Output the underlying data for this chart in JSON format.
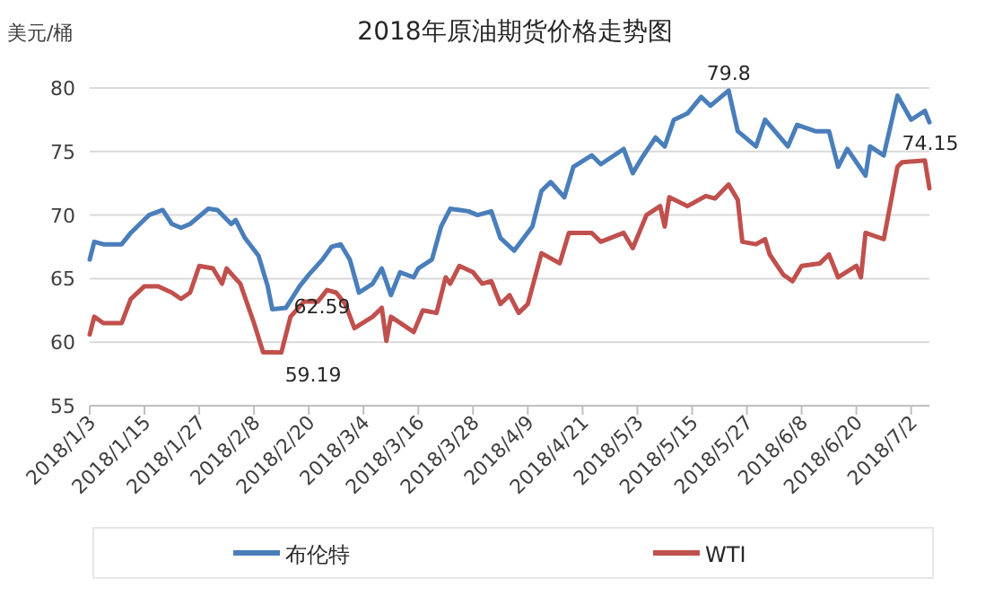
{
  "chart_data": {
    "type": "line",
    "title": "2018年原油期货价格走势图",
    "ylabel": "美元/桶",
    "xlim": [
      "2018-01-03",
      "2018-07-06"
    ],
    "xticks": [
      {
        "value": "2018-01-03",
        "label": "2018/1/3"
      },
      {
        "value": "2018-01-15",
        "label": "2018/1/15"
      },
      {
        "value": "2018-01-27",
        "label": "2018/1/27"
      },
      {
        "value": "2018-02-08",
        "label": "2018/2/8"
      },
      {
        "value": "2018-02-20",
        "label": "2018/2/20"
      },
      {
        "value": "2018-03-04",
        "label": "2018/3/4"
      },
      {
        "value": "2018-03-16",
        "label": "2018/3/16"
      },
      {
        "value": "2018-03-28",
        "label": "2018/3/28"
      },
      {
        "value": "2018-04-09",
        "label": "2018/4/9"
      },
      {
        "value": "2018-04-21",
        "label": "2018/4/21"
      },
      {
        "value": "2018-05-03",
        "label": "2018/5/3"
      },
      {
        "value": "2018-05-15",
        "label": "2018/5/15"
      },
      {
        "value": "2018-05-27",
        "label": "2018/5/27"
      },
      {
        "value": "2018-06-08",
        "label": "2018/6/8"
      },
      {
        "value": "2018-06-20",
        "label": "2018/6/20"
      },
      {
        "value": "2018-07-02",
        "label": "2018/7/2"
      }
    ],
    "ylim": [
      55,
      80
    ],
    "yticks": [
      55,
      60,
      65,
      70,
      75,
      80
    ],
    "grid": "y",
    "legend": "bottom",
    "line_style": "solid",
    "marker": "none",
    "annotations": [
      {
        "text": "62.59",
        "x": "2018-02-12",
        "y": 62.59
      },
      {
        "text": "59.19",
        "x": "2018-02-14",
        "y": 59.19
      },
      {
        "text": "79.8",
        "x": "2018-05-23",
        "y": 79.8
      },
      {
        "text": "74.15",
        "x": "2018-06-30",
        "y": 74.15
      }
    ],
    "series": [
      {
        "name": "布伦特",
        "color": "#4a7ebb",
        "x": [
          "2018-01-03",
          "2018-01-04",
          "2018-01-06",
          "2018-01-10",
          "2018-01-12",
          "2018-01-14",
          "2018-01-16",
          "2018-01-19",
          "2018-01-21",
          "2018-01-23",
          "2018-01-25",
          "2018-01-29",
          "2018-01-31",
          "2018-02-03",
          "2018-02-04",
          "2018-02-06",
          "2018-02-09",
          "2018-02-11",
          "2018-02-12",
          "2018-02-15",
          "2018-02-18",
          "2018-02-20",
          "2018-02-23",
          "2018-02-25",
          "2018-02-27",
          "2018-03-01",
          "2018-03-03",
          "2018-03-06",
          "2018-03-08",
          "2018-03-10",
          "2018-03-12",
          "2018-03-15",
          "2018-03-16",
          "2018-03-19",
          "2018-03-21",
          "2018-03-23",
          "2018-03-27",
          "2018-03-29",
          "2018-04-01",
          "2018-04-03",
          "2018-04-06",
          "2018-04-10",
          "2018-04-12",
          "2018-04-14",
          "2018-04-17",
          "2018-04-19",
          "2018-04-23",
          "2018-04-25",
          "2018-04-30",
          "2018-05-02",
          "2018-05-04",
          "2018-05-07",
          "2018-05-09",
          "2018-05-11",
          "2018-05-14",
          "2018-05-17",
          "2018-05-19",
          "2018-05-23",
          "2018-05-25",
          "2018-05-29",
          "2018-05-31",
          "2018-06-05",
          "2018-06-07",
          "2018-06-11",
          "2018-06-14",
          "2018-06-16",
          "2018-06-18",
          "2018-06-22",
          "2018-06-23",
          "2018-06-26",
          "2018-06-29",
          "2018-07-02",
          "2018-07-05",
          "2018-07-06"
        ],
        "values": [
          66.5,
          67.9,
          67.7,
          67.7,
          68.6,
          69.3,
          70.0,
          70.4,
          69.3,
          69.0,
          69.3,
          70.5,
          70.4,
          69.3,
          69.6,
          68.2,
          66.8,
          64.4,
          62.59,
          62.7,
          64.4,
          65.3,
          66.5,
          67.5,
          67.7,
          66.5,
          63.9,
          64.6,
          65.8,
          63.7,
          65.5,
          65.1,
          65.8,
          66.5,
          69.1,
          70.5,
          70.3,
          70.0,
          70.3,
          68.2,
          67.2,
          69.1,
          71.9,
          72.6,
          71.4,
          73.8,
          74.7,
          74.0,
          75.2,
          73.3,
          74.5,
          76.1,
          75.4,
          77.5,
          78.0,
          79.3,
          78.6,
          79.8,
          76.6,
          75.4,
          77.5,
          75.4,
          77.1,
          76.6,
          76.6,
          73.8,
          75.2,
          73.1,
          75.4,
          74.7,
          79.4,
          77.5,
          78.2,
          77.3
        ]
      },
      {
        "name": "WTI",
        "color": "#c0504d",
        "x": [
          "2018-01-03",
          "2018-01-04",
          "2018-01-06",
          "2018-01-10",
          "2018-01-12",
          "2018-01-15",
          "2018-01-18",
          "2018-01-21",
          "2018-01-23",
          "2018-01-25",
          "2018-01-27",
          "2018-01-30",
          "2018-02-01",
          "2018-02-02",
          "2018-02-05",
          "2018-02-08",
          "2018-02-10",
          "2018-02-12",
          "2018-02-14",
          "2018-02-16",
          "2018-02-19",
          "2018-02-22",
          "2018-02-24",
          "2018-02-26",
          "2018-02-28",
          "2018-03-02",
          "2018-03-06",
          "2018-03-08",
          "2018-03-09",
          "2018-03-10",
          "2018-03-15",
          "2018-03-17",
          "2018-03-20",
          "2018-03-22",
          "2018-03-23",
          "2018-03-25",
          "2018-03-28",
          "2018-03-30",
          "2018-04-01",
          "2018-04-03",
          "2018-04-05",
          "2018-04-07",
          "2018-04-09",
          "2018-04-12",
          "2018-04-16",
          "2018-04-18",
          "2018-04-23",
          "2018-04-25",
          "2018-04-30",
          "2018-05-02",
          "2018-05-05",
          "2018-05-08",
          "2018-05-09",
          "2018-05-10",
          "2018-05-14",
          "2018-05-18",
          "2018-05-20",
          "2018-05-23",
          "2018-05-25",
          "2018-05-26",
          "2018-05-29",
          "2018-05-31",
          "2018-06-01",
          "2018-06-04",
          "2018-06-06",
          "2018-06-08",
          "2018-06-12",
          "2018-06-14",
          "2018-06-16",
          "2018-06-20",
          "2018-06-21",
          "2018-06-22",
          "2018-06-26",
          "2018-06-29",
          "2018-06-30",
          "2018-07-05",
          "2018-07-06"
        ],
        "values": [
          60.6,
          62.0,
          61.5,
          61.5,
          63.4,
          64.4,
          64.4,
          63.9,
          63.4,
          63.9,
          66.0,
          65.8,
          64.6,
          65.8,
          64.6,
          61.5,
          59.2,
          59.2,
          59.19,
          62.0,
          63.2,
          63.2,
          64.1,
          63.9,
          63.0,
          61.1,
          62.0,
          62.7,
          60.1,
          62.0,
          60.8,
          62.5,
          62.3,
          65.1,
          64.6,
          66.0,
          65.5,
          64.6,
          64.8,
          63.0,
          63.7,
          62.3,
          63.0,
          67.0,
          66.2,
          68.6,
          68.6,
          67.9,
          68.6,
          67.4,
          70.0,
          70.7,
          69.1,
          71.4,
          70.7,
          71.5,
          71.3,
          72.4,
          71.2,
          67.9,
          67.7,
          68.1,
          66.9,
          65.3,
          64.8,
          66.0,
          66.2,
          66.9,
          65.1,
          66.0,
          65.1,
          68.6,
          68.1,
          73.8,
          74.15,
          74.3,
          72.1
        ]
      }
    ]
  }
}
